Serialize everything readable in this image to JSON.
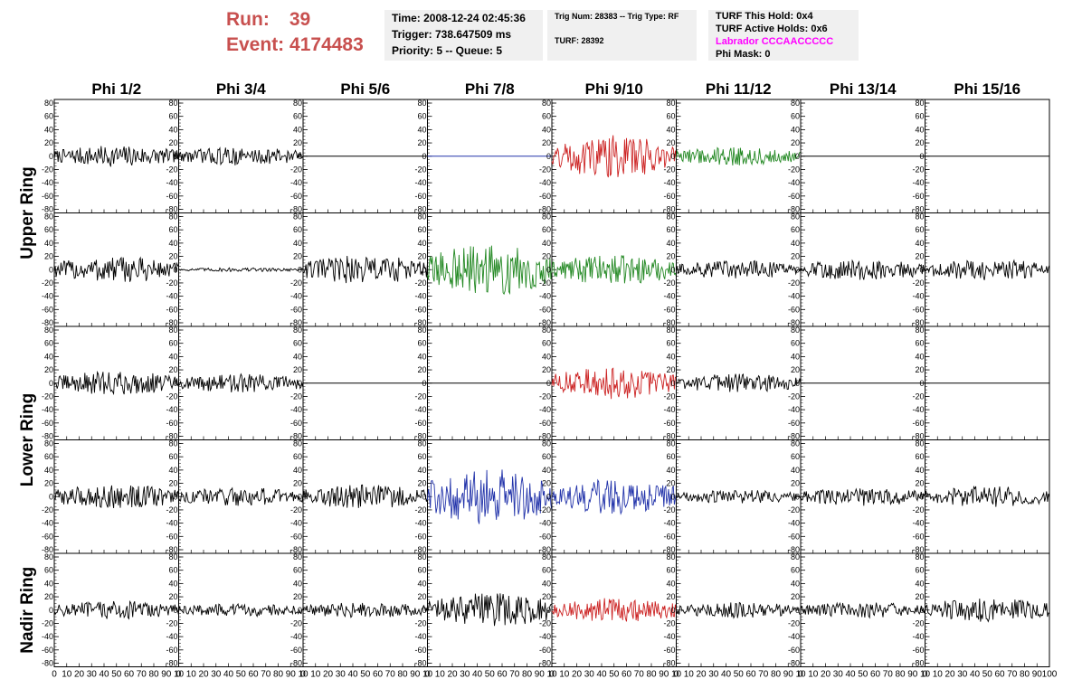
{
  "header": {
    "run_label": "Run:",
    "run_value": "39",
    "event_label": "Event:",
    "event_value": "4174483"
  },
  "info_time": {
    "time": "Time: 2008-12-24 02:45:36",
    "trigger": "Trigger: 738.647509 ms",
    "priority": "Priority: 5 -- Queue: 5"
  },
  "info_trig": {
    "trig": "Trig Num: 28383 -- Trig Type: RF",
    "turf": "TURF: 28392"
  },
  "info_turf": {
    "hold": "TURF This Hold: 0x4",
    "active": "TURF Active Holds: 0x6",
    "labrador": "Labrador CCCAACCCCC",
    "phimask": "Phi Mask: 0"
  },
  "colors": {
    "red": "#cc2222",
    "green": "#228822",
    "blue": "#2233aa",
    "black": "#000000",
    "run_text": "#c8504f",
    "labrador_text": "#ff00ff",
    "info_bg": "#f0f0f0"
  },
  "chart_data": {
    "type": "line",
    "columns": [
      "Phi 1/2",
      "Phi 3/4",
      "Phi 5/6",
      "Phi 7/8",
      "Phi 9/10",
      "Phi 11/12",
      "Phi 13/14",
      "Phi 15/16"
    ],
    "ring_labels": [
      {
        "label": "Upper Ring"
      },
      {
        "label": "Lower Ring"
      },
      {
        "label": "Nadir Ring"
      }
    ],
    "ylim": [
      -80,
      80
    ],
    "xlim": [
      0,
      100
    ],
    "yticks": [
      -80,
      -60,
      -40,
      -20,
      0,
      20,
      40,
      60,
      80
    ],
    "xticks": [
      0,
      10,
      20,
      30,
      40,
      50,
      60,
      70,
      80,
      90
    ],
    "x_tick_labels": [
      "0",
      "10",
      "20",
      "30",
      "40",
      "50",
      "60",
      "70",
      "80",
      "90",
      "10"
    ],
    "x_tick_labels_last": [
      "0",
      "10",
      "20",
      "30",
      "40",
      "50",
      "60",
      "70",
      "80",
      "90",
      "100"
    ],
    "rows": [
      {
        "ring": 0,
        "panels": [
          {
            "color": "black",
            "amp": 16
          },
          {
            "color": "black",
            "amp": 14
          },
          {
            "color": "black",
            "amp": 0
          },
          {
            "color": "blue",
            "amp": 0
          },
          {
            "color": "red",
            "amp": 32
          },
          {
            "color": "green",
            "amp": 14
          },
          {
            "color": "black",
            "amp": 0
          },
          {
            "color": "black",
            "amp": 0
          }
        ]
      },
      {
        "ring": 0,
        "panels": [
          {
            "color": "black",
            "amp": 20
          },
          {
            "color": "black",
            "amp": 3
          },
          {
            "color": "black",
            "amp": 22
          },
          {
            "color": "green",
            "amp": 38
          },
          {
            "color": "green",
            "amp": 22
          },
          {
            "color": "black",
            "amp": 14
          },
          {
            "color": "black",
            "amp": 16
          },
          {
            "color": "black",
            "amp": 16
          }
        ]
      },
      {
        "ring": 1,
        "panels": [
          {
            "color": "black",
            "amp": 18
          },
          {
            "color": "black",
            "amp": 14
          },
          {
            "color": "black",
            "amp": 0
          },
          {
            "color": "black",
            "amp": 0
          },
          {
            "color": "red",
            "amp": 24
          },
          {
            "color": "black",
            "amp": 14
          },
          {
            "color": "black",
            "amp": 0
          },
          {
            "color": "black",
            "amp": 0
          }
        ]
      },
      {
        "ring": 1,
        "panels": [
          {
            "color": "black",
            "amp": 18
          },
          {
            "color": "black",
            "amp": 14
          },
          {
            "color": "black",
            "amp": 18
          },
          {
            "color": "blue",
            "amp": 42
          },
          {
            "color": "blue",
            "amp": 26
          },
          {
            "color": "black",
            "amp": 10
          },
          {
            "color": "black",
            "amp": 14
          },
          {
            "color": "black",
            "amp": 16
          }
        ]
      },
      {
        "ring": 2,
        "panels": [
          {
            "color": "black",
            "amp": 14
          },
          {
            "color": "black",
            "amp": 10
          },
          {
            "color": "black",
            "amp": 12
          },
          {
            "color": "black",
            "amp": 26
          },
          {
            "color": "red",
            "amp": 18
          },
          {
            "color": "black",
            "amp": 12
          },
          {
            "color": "black",
            "amp": 12
          },
          {
            "color": "black",
            "amp": 18
          }
        ]
      }
    ]
  }
}
